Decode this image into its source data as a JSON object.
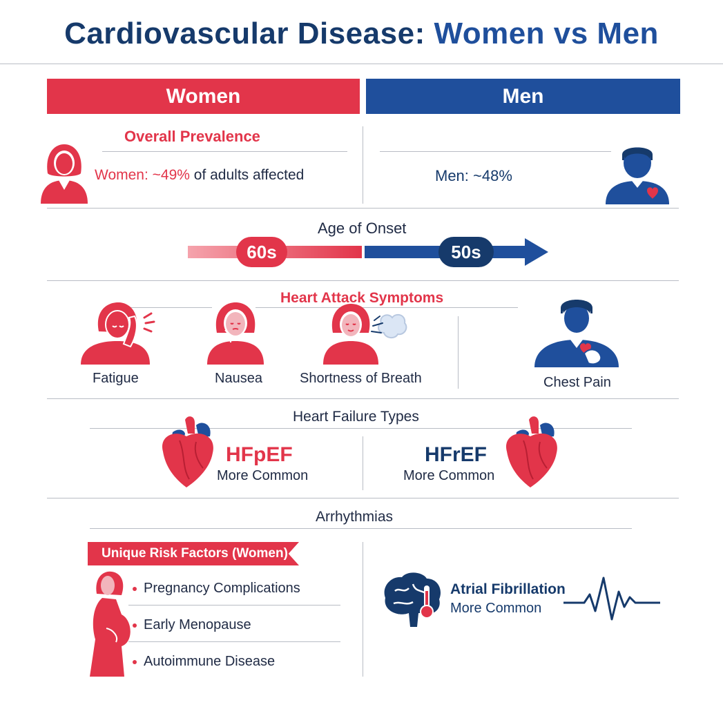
{
  "title": {
    "part1": "Cardiovascular Disease: ",
    "part2": "Women vs Men"
  },
  "headers": {
    "women": "Women",
    "men": "Men"
  },
  "prevalence": {
    "title": "Overall Prevalence",
    "women_prefix": "Women: ~49%",
    "women_suffix": "of adults affected",
    "men": "Men: ~48%"
  },
  "onset": {
    "title": "Age of Onset",
    "women": "60s",
    "men": "50s"
  },
  "symptoms": {
    "title": "Heart Attack Symptoms",
    "women": [
      "Fatigue",
      "Nausea",
      "Shortness of Breath"
    ],
    "men": "Chest Pain"
  },
  "heart_failure": {
    "title": "Heart Failure Types",
    "women_type": "HFpEF",
    "women_note": "More Common",
    "men_type": "HFrEF",
    "men_note": "More Common"
  },
  "arrhythmias": {
    "title": "Arrhythmias",
    "risk_title": "Unique Risk Factors (Women)",
    "risk_factors": [
      "Pregnancy Complications",
      "Early Menopause",
      "Autoimmune Disease"
    ],
    "men_type": "Atrial Fibrillation",
    "men_note": "More Common"
  },
  "colors": {
    "women": "#e2354a",
    "men": "#1f4f9c",
    "navy": "#163a6b"
  },
  "icons": [
    "woman-icon",
    "man-heart-icon",
    "woman-fatigue-icon",
    "woman-nausea-icon",
    "woman-breath-icon",
    "man-chest-pain-icon",
    "heart-icon",
    "brain-icon",
    "pregnant-woman-icon",
    "ecg-icon"
  ]
}
